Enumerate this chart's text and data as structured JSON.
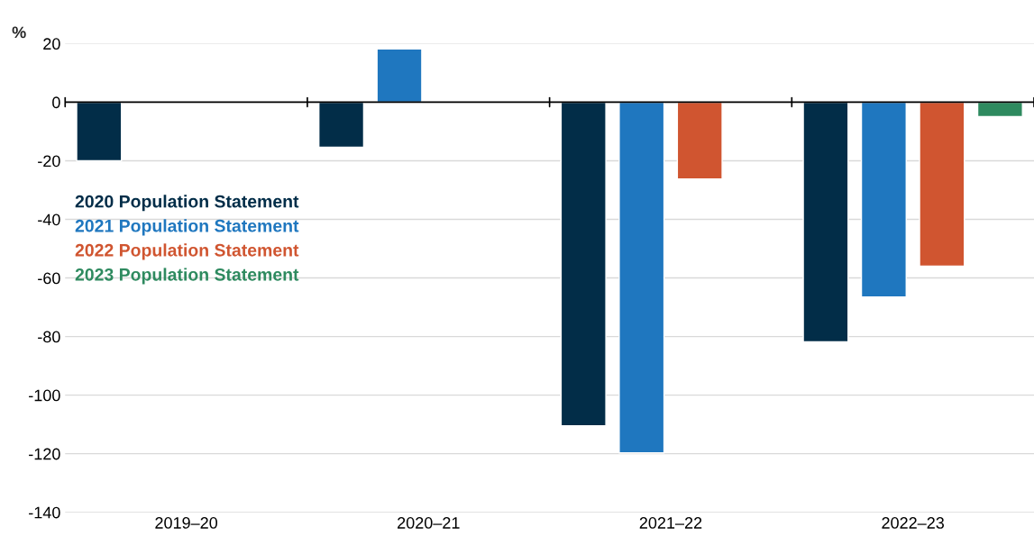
{
  "chart_data": {
    "type": "bar",
    "ylabel": "%",
    "categories": [
      "2019–20",
      "2020–21",
      "2021–22",
      "2022–23"
    ],
    "series": [
      {
        "name": "2020 Population Statement",
        "color": "#022d48",
        "values": [
          -20,
          -15.4,
          -110.5,
          -81.8
        ]
      },
      {
        "name": "2021 Population Statement",
        "color": "#1f77bf",
        "values": [
          null,
          18.2,
          -119.7,
          -66.5
        ]
      },
      {
        "name": "2022 Population Statement",
        "color": "#d05530",
        "values": [
          null,
          null,
          -26.2,
          -56
        ]
      },
      {
        "name": "2023 Population Statement",
        "color": "#2e8a5f",
        "values": [
          null,
          null,
          null,
          -4.9
        ]
      }
    ],
    "ylim": [
      -140,
      20
    ],
    "yticks": [
      -140,
      -120,
      -100,
      -80,
      -60,
      -40,
      -20,
      0,
      20
    ],
    "grid": "y",
    "legend": "left"
  }
}
